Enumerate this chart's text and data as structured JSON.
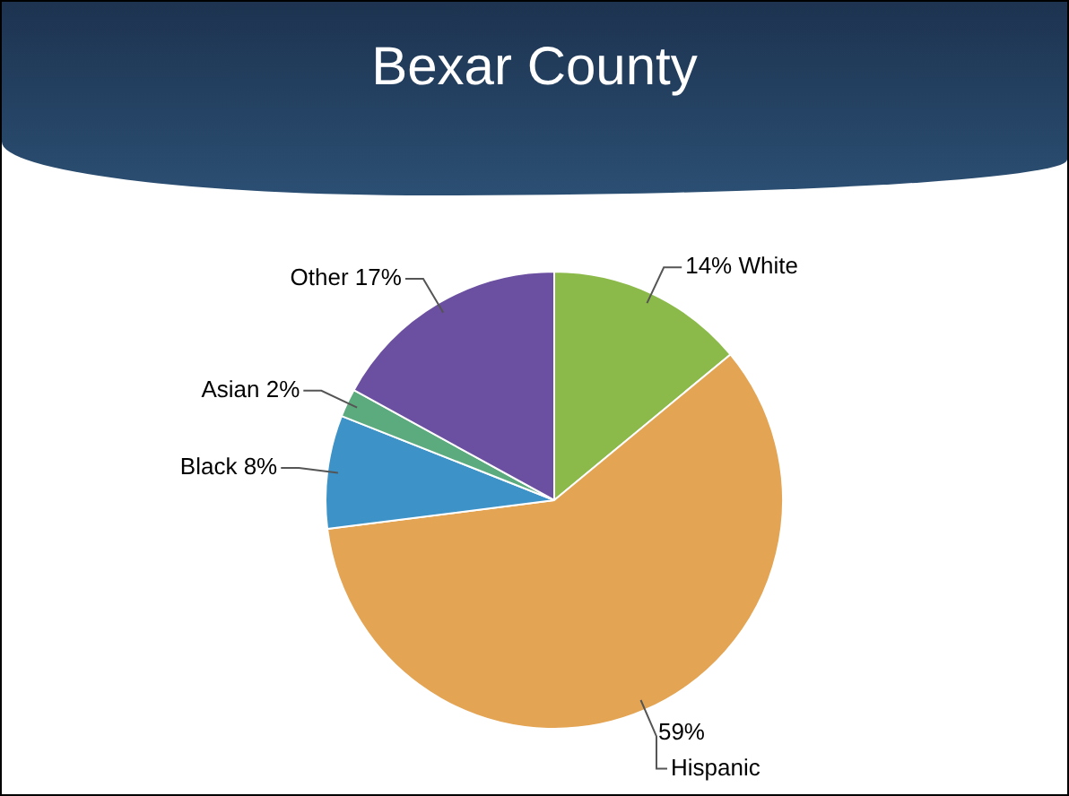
{
  "chart_data": {
    "type": "pie",
    "title": "Bexar County",
    "categories": [
      "White",
      "Hispanic",
      "Black",
      "Asian",
      "Other"
    ],
    "values": [
      14,
      59,
      8,
      2,
      17
    ],
    "colors": [
      "#8cba4a",
      "#e3a454",
      "#3d93c8",
      "#5cab7e",
      "#6b4fa0"
    ],
    "value_labels": [
      "14%",
      "59%",
      "8%",
      "2%",
      "17%"
    ],
    "legend": false
  }
}
